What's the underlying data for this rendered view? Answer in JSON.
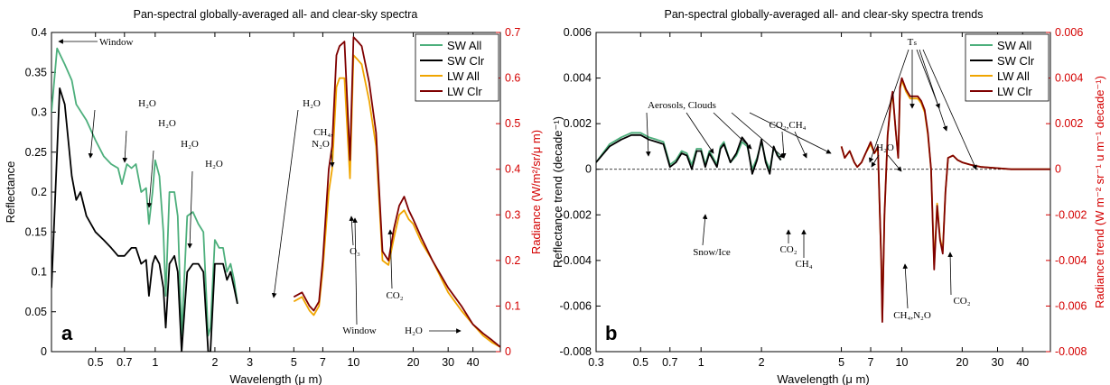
{
  "chart_data": [
    {
      "type": "line",
      "panel_label": "a",
      "title": "Pan-spectral globally-averaged all- and clear-sky spectra",
      "xlabel": "Wavelength (μ m)",
      "ylabel_left": "Reflectance",
      "ylabel_right": "Radiance (W/m²/sr/μ m)",
      "xscale": "log",
      "xlim": [
        0.3,
        55
      ],
      "ylim_left": [
        0,
        0.4
      ],
      "ylim_right": [
        0,
        0.7
      ],
      "xticks": [
        0.5,
        0.7,
        1,
        2,
        3,
        5,
        7,
        10,
        20,
        30,
        40
      ],
      "xtick_labels": [
        "0.5",
        "0.7",
        "1",
        "2",
        "3",
        "5",
        "7",
        "10",
        "20",
        "30",
        "40"
      ],
      "yticks_left": [
        0,
        0.05,
        0.1,
        0.15,
        0.2,
        0.25,
        0.3,
        0.35,
        0.4
      ],
      "ytick_labels_left": [
        "0",
        "0.05",
        "0.1",
        "0.15",
        "0.2",
        "0.25",
        "0.3",
        "0.35",
        "0.4"
      ],
      "yticks_right": [
        0,
        0.1,
        0.2,
        0.3,
        0.4,
        0.5,
        0.6,
        0.7
      ],
      "ytick_labels_right": [
        "0",
        "0.1",
        "0.2",
        "0.3",
        "0.4",
        "0.5",
        "0.6",
        "0.7"
      ],
      "legend": {
        "position": "top-right",
        "entries": [
          "SW All",
          "SW Clr",
          "LW All",
          "LW Clr"
        ]
      },
      "series": [
        {
          "name": "SW All",
          "axis": "left",
          "color": "#4daf7c",
          "x": [
            0.3,
            0.32,
            0.35,
            0.38,
            0.4,
            0.45,
            0.5,
            0.55,
            0.6,
            0.65,
            0.68,
            0.72,
            0.76,
            0.8,
            0.85,
            0.9,
            0.93,
            0.97,
            1.0,
            1.05,
            1.1,
            1.13,
            1.18,
            1.25,
            1.3,
            1.36,
            1.45,
            1.55,
            1.65,
            1.75,
            1.85,
            1.9,
            2.0,
            2.1,
            2.2,
            2.3,
            2.4,
            2.5,
            2.6
          ],
          "y": [
            0.3,
            0.38,
            0.36,
            0.34,
            0.31,
            0.29,
            0.265,
            0.245,
            0.235,
            0.23,
            0.21,
            0.235,
            0.23,
            0.235,
            0.2,
            0.205,
            0.16,
            0.2,
            0.24,
            0.22,
            0.15,
            0.07,
            0.2,
            0.2,
            0.17,
            0.02,
            0.17,
            0.175,
            0.16,
            0.15,
            0.02,
            0.03,
            0.14,
            0.13,
            0.13,
            0.1,
            0.11,
            0.09,
            0.06
          ]
        },
        {
          "name": "SW Clr",
          "axis": "left",
          "color": "#000000",
          "x": [
            0.3,
            0.33,
            0.35,
            0.38,
            0.4,
            0.42,
            0.45,
            0.5,
            0.55,
            0.6,
            0.65,
            0.7,
            0.76,
            0.8,
            0.85,
            0.9,
            0.93,
            0.97,
            1.0,
            1.05,
            1.1,
            1.13,
            1.18,
            1.25,
            1.3,
            1.36,
            1.45,
            1.55,
            1.65,
            1.75,
            1.85,
            1.9,
            2.0,
            2.1,
            2.2,
            2.3,
            2.4,
            2.5,
            2.6
          ],
          "y": [
            0.08,
            0.33,
            0.31,
            0.22,
            0.19,
            0.2,
            0.17,
            0.15,
            0.14,
            0.13,
            0.12,
            0.12,
            0.13,
            0.13,
            0.11,
            0.115,
            0.07,
            0.11,
            0.12,
            0.11,
            0.08,
            0.03,
            0.11,
            0.12,
            0.1,
            0.0,
            0.1,
            0.11,
            0.11,
            0.1,
            0.0,
            0.0,
            0.11,
            0.11,
            0.11,
            0.09,
            0.1,
            0.08,
            0.06
          ]
        },
        {
          "name": "LW All",
          "axis": "right",
          "color": "#f0a500",
          "x": [
            5.0,
            5.5,
            6.0,
            6.3,
            6.7,
            7.0,
            7.5,
            7.8,
            8.2,
            8.5,
            9.0,
            9.6,
            10.0,
            10.5,
            11.0,
            12.0,
            13.0,
            14.0,
            15.0,
            16.0,
            17.0,
            18.0,
            19.0,
            20.0,
            22.0,
            25.0,
            30.0,
            35.0,
            40.0,
            45.0,
            50.0,
            55.0
          ],
          "y": [
            0.11,
            0.12,
            0.09,
            0.08,
            0.1,
            0.18,
            0.35,
            0.4,
            0.58,
            0.6,
            0.6,
            0.38,
            0.65,
            0.64,
            0.63,
            0.55,
            0.45,
            0.2,
            0.19,
            0.25,
            0.3,
            0.31,
            0.29,
            0.28,
            0.24,
            0.2,
            0.13,
            0.09,
            0.06,
            0.035,
            0.02,
            0.01
          ]
        },
        {
          "name": "LW Clr",
          "axis": "right",
          "color": "#7f0000",
          "x": [
            5.0,
            5.5,
            6.0,
            6.3,
            6.7,
            7.0,
            7.5,
            7.8,
            8.2,
            8.5,
            9.0,
            9.6,
            10.0,
            10.5,
            11.0,
            12.0,
            13.0,
            14.0,
            15.0,
            16.0,
            17.0,
            18.0,
            19.0,
            20.0,
            22.0,
            25.0,
            30.0,
            35.0,
            40.0,
            45.0,
            50.0,
            55.0
          ],
          "y": [
            0.12,
            0.13,
            0.1,
            0.09,
            0.11,
            0.2,
            0.4,
            0.45,
            0.65,
            0.67,
            0.68,
            0.42,
            0.69,
            0.68,
            0.67,
            0.59,
            0.48,
            0.22,
            0.2,
            0.27,
            0.32,
            0.34,
            0.31,
            0.29,
            0.25,
            0.2,
            0.14,
            0.1,
            0.06,
            0.04,
            0.025,
            0.01
          ]
        }
      ],
      "annotations": [
        "Window",
        "H₂O",
        "H₂O",
        "H₂O",
        "H₂O",
        "H₂O",
        "CH₄,",
        "N₂O",
        "O₃",
        "Window",
        "CO₂",
        "H₂O"
      ]
    },
    {
      "type": "line",
      "panel_label": "b",
      "title": "Pan-spectral globally-averaged all- and clear-sky spectra trends",
      "xlabel": "Wavelength (μ m)",
      "ylabel_left": "Reflectance trend (decade⁻¹)",
      "ylabel_right": "Radiance trend (W m⁻² sr⁻¹ u m⁻¹ decade⁻¹)",
      "xscale": "log",
      "xlim": [
        0.3,
        55
      ],
      "ylim_left": [
        -0.008,
        0.006
      ],
      "ylim_right": [
        -0.008,
        0.006
      ],
      "xticks": [
        0.3,
        0.5,
        0.7,
        1,
        2,
        5,
        7,
        10,
        20,
        30,
        40
      ],
      "xtick_labels": [
        "0.3",
        "0.5",
        "0.7",
        "1",
        "2",
        "5",
        "7",
        "10",
        "20",
        "30",
        "40"
      ],
      "yticks_left": [
        -0.008,
        -0.006,
        -0.004,
        -0.002,
        0,
        0.002,
        0.004,
        0.006
      ],
      "ytick_labels_left": [
        "-0.008",
        "-0.006",
        "-0.004",
        "-0.002",
        "0",
        "0.002",
        "0.004",
        "0.006"
      ],
      "yticks_right": [
        -0.008,
        -0.006,
        -0.004,
        -0.002,
        0,
        0.002,
        0.004,
        0.006
      ],
      "ytick_labels_right": [
        "-0.008",
        "-0.006",
        "-0.004",
        "-0.002",
        "0",
        "0.002",
        "0.004",
        "0.006"
      ],
      "legend": {
        "position": "top-right",
        "entries": [
          "SW All",
          "SW Clr",
          "LW All",
          "LW Clr"
        ]
      },
      "series": [
        {
          "name": "SW All",
          "axis": "left",
          "color": "#4daf7c",
          "x": [
            0.3,
            0.35,
            0.4,
            0.45,
            0.5,
            0.55,
            0.6,
            0.65,
            0.7,
            0.75,
            0.8,
            0.85,
            0.9,
            0.95,
            1.0,
            1.05,
            1.1,
            1.15,
            1.2,
            1.25,
            1.3,
            1.4,
            1.5,
            1.6,
            1.7,
            1.8,
            1.9,
            2.0,
            2.1,
            2.2,
            2.3,
            2.4,
            2.5
          ],
          "y": [
            0.0003,
            0.0011,
            0.0014,
            0.0016,
            0.0016,
            0.0014,
            0.0013,
            0.0012,
            0.0002,
            0.0004,
            0.0008,
            0.0007,
            0.0002,
            0.0009,
            0.0009,
            0.0002,
            0.0008,
            0.0005,
            0.0002,
            0.001,
            0.0012,
            0.0003,
            0.0006,
            0.0012,
            0.001,
            0.0,
            0.0005,
            0.0012,
            0.0004,
            0.0,
            0.0009,
            0.0007,
            0.0004
          ]
        },
        {
          "name": "SW Clr",
          "axis": "left",
          "color": "#000000",
          "x": [
            0.3,
            0.35,
            0.4,
            0.45,
            0.5,
            0.55,
            0.6,
            0.65,
            0.7,
            0.75,
            0.8,
            0.85,
            0.9,
            0.95,
            1.0,
            1.05,
            1.1,
            1.15,
            1.2,
            1.25,
            1.3,
            1.4,
            1.5,
            1.6,
            1.7,
            1.8,
            1.9,
            2.0,
            2.1,
            2.2,
            2.3,
            2.4,
            2.5
          ],
          "y": [
            0.0003,
            0.001,
            0.0013,
            0.0015,
            0.0015,
            0.0013,
            0.0012,
            0.0011,
            0.0001,
            0.0003,
            0.0007,
            0.0006,
            0.0,
            0.0008,
            0.0008,
            0.0001,
            0.0007,
            0.0004,
            0.0001,
            0.0009,
            0.0011,
            0.0003,
            0.0007,
            0.0014,
            0.0011,
            -0.0002,
            0.0004,
            0.0013,
            0.0003,
            -0.0002,
            0.001,
            0.0006,
            0.0004
          ]
        },
        {
          "name": "LW All",
          "axis": "right",
          "color": "#f0a500",
          "x": [
            5.0,
            5.2,
            5.5,
            5.8,
            6.0,
            6.3,
            6.6,
            7.0,
            7.3,
            7.6,
            7.9,
            8.0,
            8.2,
            8.5,
            8.8,
            9.0,
            9.3,
            9.6,
            9.8,
            10.0,
            10.5,
            11.0,
            11.5,
            12.0,
            12.5,
            13.0,
            13.5,
            14.0,
            14.5,
            15.0,
            15.5,
            16.0,
            16.5,
            17.0,
            18.0,
            19.0,
            20.0,
            22.0,
            25.0,
            30.0,
            35.0,
            40.0,
            45.0,
            50.0,
            55.0
          ],
          "y": [
            0.001,
            0.0005,
            0.0008,
            0.0003,
            0.0001,
            0.0003,
            0.0007,
            0.0011,
            0.0007,
            0.0009,
            -0.004,
            -0.0066,
            -0.002,
            0.0015,
            0.0028,
            0.0033,
            0.0018,
            0.0005,
            0.0035,
            0.0039,
            0.0034,
            0.0031,
            0.0031,
            0.0031,
            0.0029,
            0.0025,
            0.0015,
            0.0,
            -0.0042,
            -0.0015,
            -0.003,
            -0.0036,
            -0.001,
            0.0005,
            0.0006,
            0.0004,
            0.0003,
            0.0002,
            0.0001,
            5e-05,
            0.0,
            0.0,
            0.0,
            0.0,
            0.0
          ]
        },
        {
          "name": "LW Clr",
          "axis": "right",
          "color": "#7f0000",
          "x": [
            5.0,
            5.2,
            5.5,
            5.8,
            6.0,
            6.3,
            6.6,
            7.0,
            7.3,
            7.6,
            7.9,
            8.0,
            8.2,
            8.5,
            8.8,
            9.0,
            9.3,
            9.6,
            9.8,
            10.0,
            10.5,
            11.0,
            11.5,
            12.0,
            12.5,
            13.0,
            13.5,
            14.0,
            14.5,
            15.0,
            15.5,
            16.0,
            16.5,
            17.0,
            18.0,
            19.0,
            20.0,
            22.0,
            25.0,
            30.0,
            35.0,
            40.0,
            45.0,
            50.0,
            55.0
          ],
          "y": [
            0.001,
            0.0005,
            0.0008,
            0.0003,
            0.0001,
            0.0003,
            0.0007,
            0.0012,
            0.0007,
            0.001,
            -0.004,
            -0.0067,
            -0.002,
            0.0015,
            0.0029,
            0.0034,
            0.0018,
            0.0005,
            0.0036,
            0.004,
            0.0035,
            0.0032,
            0.0032,
            0.0032,
            0.003,
            0.0026,
            0.0016,
            0.0,
            -0.0044,
            -0.0016,
            -0.0031,
            -0.0037,
            -0.001,
            0.0005,
            0.0006,
            0.0004,
            0.0003,
            0.0002,
            0.0001,
            5e-05,
            0.0,
            0.0,
            0.0,
            0.0,
            0.0
          ]
        }
      ],
      "annotations": [
        "Aerosols, Clouds",
        "CO₂,CH₄",
        "Snow/Ice",
        "CO₂",
        "CH₄",
        "H₂O",
        "Tₛ",
        "CH₄,N₂O",
        "CO₂"
      ]
    }
  ]
}
